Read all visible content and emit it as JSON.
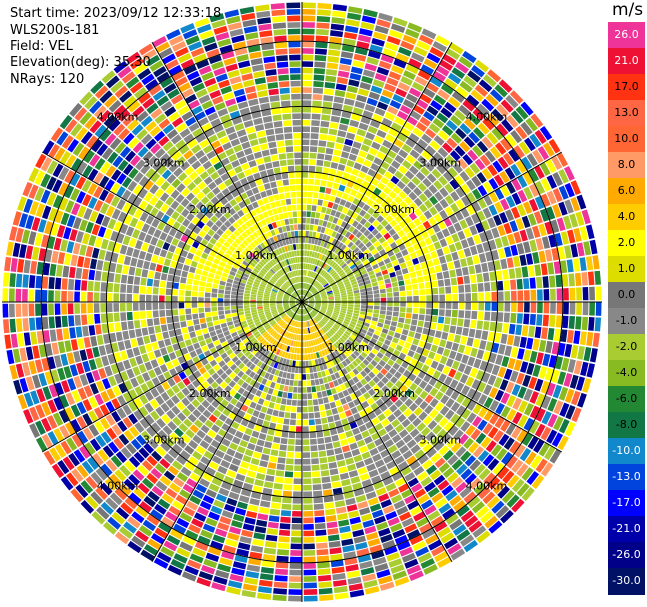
{
  "header": {
    "start_time": "Start time: 2023/09/12 12:33:18",
    "instrument": "WLS200s-181",
    "field": "Field: VEL",
    "elevation": "Elevation(deg): 35.30",
    "nrays": "NRays: 120"
  },
  "colorbar": {
    "unit": "m/s",
    "levels": [
      {
        "label": "26.0",
        "color": "#ee3399"
      },
      {
        "label": "21.0",
        "color": "#ee1133"
      },
      {
        "label": "17.0",
        "color": "#ff3311"
      },
      {
        "label": "13.0",
        "color": "#ff6644"
      },
      {
        "label": "10.0",
        "color": "#ff6633"
      },
      {
        "label": "8.0",
        "color": "#ff9966"
      },
      {
        "label": "6.0",
        "color": "#ffaa00"
      },
      {
        "label": "4.0",
        "color": "#ffcc00"
      },
      {
        "label": "2.0",
        "color": "#ffff00"
      },
      {
        "label": "1.0",
        "color": "#dddd00"
      },
      {
        "label": "0.0",
        "color": "#777777"
      },
      {
        "label": "-1.0",
        "color": "#888888"
      },
      {
        "label": "-2.0",
        "color": "#aacc33"
      },
      {
        "label": "-4.0",
        "color": "#88bb22"
      },
      {
        "label": "-6.0",
        "color": "#228833"
      },
      {
        "label": "-8.0",
        "color": "#117744"
      },
      {
        "label": "-10.0",
        "color": "#1188cc"
      },
      {
        "label": "-13.0",
        "color": "#0044dd"
      },
      {
        "label": "-17.0",
        "color": "#0000ff"
      },
      {
        "label": "-21.0",
        "color": "#0000aa"
      },
      {
        "label": "-26.0",
        "color": "#000088"
      },
      {
        "label": "-30.0",
        "color": "#001166"
      }
    ]
  },
  "chart_data": {
    "type": "ppi",
    "field": "VEL",
    "unit": "m/s",
    "nrays": 120,
    "range_rings_km": [
      1.0,
      2.0,
      3.0,
      4.0
    ],
    "range_ring_labels": [
      "1.00km",
      "2.00km",
      "3.00km",
      "4.00km"
    ],
    "max_range_km": 4.6,
    "spoke_angles_deg": [
      0,
      30,
      60,
      90,
      120,
      150,
      180,
      210,
      240,
      270,
      300,
      330
    ],
    "near_field_pattern": {
      "center_velocity": -4.0,
      "inner_ring_velocity": 2.0,
      "outer_noise_range_km": 3.2
    }
  }
}
